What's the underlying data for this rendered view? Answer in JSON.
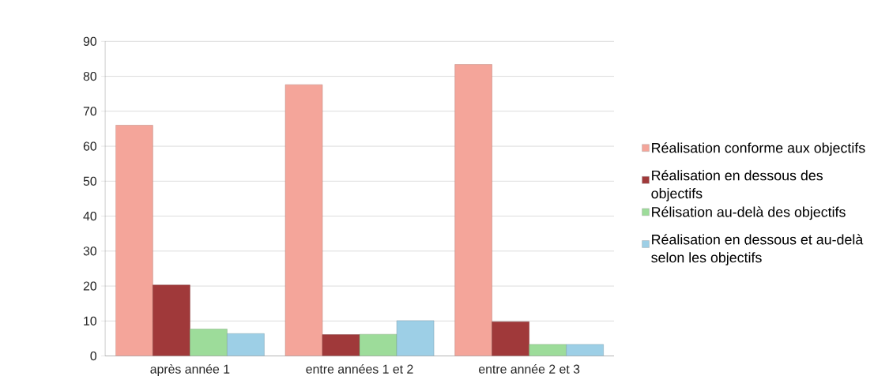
{
  "chart_data": {
    "type": "bar",
    "categories": [
      "après année 1",
      "entre années 1 et 2",
      "entre année 2 et 3"
    ],
    "series": [
      {
        "name": "Réalisation conforme aux objectifs",
        "color": "#f4a59a",
        "values": [
          66,
          77.6,
          83.4
        ]
      },
      {
        "name": "Réalisation en dessous des objectifs",
        "color": "#a0393a",
        "values": [
          20.3,
          6.1,
          9.8
        ]
      },
      {
        "name": "Rélisation au-delà des objectifs",
        "color": "#9ddc9a",
        "values": [
          7.7,
          6.2,
          3.3
        ]
      },
      {
        "name": "Réalisation en dessous et au-delà selon les objectifs",
        "color": "#9dcfe6",
        "values": [
          6.4,
          10.1,
          3.3
        ]
      }
    ],
    "ylim": [
      0,
      90
    ],
    "yticks": [
      0,
      10,
      20,
      30,
      40,
      50,
      60,
      70,
      80,
      90
    ],
    "grid": "y",
    "legend": "right"
  }
}
